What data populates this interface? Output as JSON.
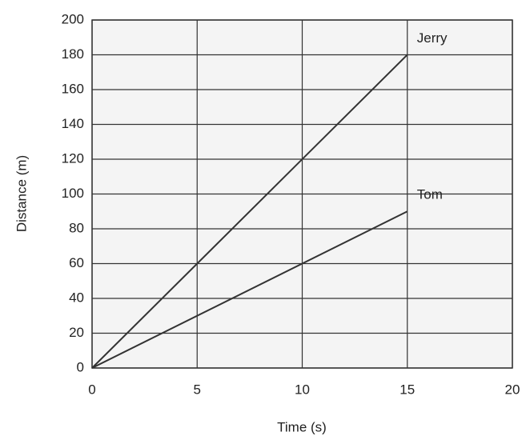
{
  "chart_data": {
    "type": "line",
    "x_label": "Time (s)",
    "y_label": "Distance (m)",
    "x": [
      0,
      15
    ],
    "series": [
      {
        "name": "Jerry",
        "color": "#333333",
        "values": [
          0,
          180
        ]
      },
      {
        "name": "Tom",
        "color": "#333333",
        "values": [
          0,
          90
        ]
      }
    ],
    "xlim": [
      0,
      20
    ],
    "xticks": [
      0,
      5,
      10,
      15,
      20
    ],
    "ylim": [
      0,
      200
    ],
    "yticks": [
      0,
      20,
      40,
      60,
      80,
      100,
      120,
      140,
      160,
      180,
      200
    ],
    "grid": true
  }
}
